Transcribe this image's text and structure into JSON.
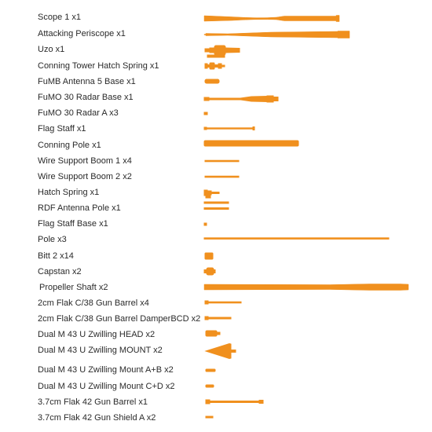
{
  "accent": "#f0901e",
  "parts": [
    {
      "label": "Scope 1 x1"
    },
    {
      "label": "Attacking Periscope x1"
    },
    {
      "label": "Uzo x1"
    },
    {
      "label": "Conning Tower Hatch Spring x1"
    },
    {
      "label": "FuMB Antenna 5 Base x1"
    },
    {
      "label": "FuMO 30 Radar Base x1"
    },
    {
      "label": "FuMO 30 Radar A x3"
    },
    {
      "label": "Flag Staff x1"
    },
    {
      "label": "Conning Pole x1"
    },
    {
      "label": "Wire Support Boom 1 x4"
    },
    {
      "label": "Wire Support Boom 2 x2"
    },
    {
      "label": "Hatch Spring x1"
    },
    {
      "label": "RDF Antenna Pole x1"
    },
    {
      "label": "Flag Staff Base x1"
    },
    {
      "label": "Pole x3"
    },
    {
      "label": "Bitt 2 x14"
    },
    {
      "label": "Capstan x2"
    },
    {
      "label": "Propeller Shaft x2"
    },
    {
      "label": "2cm Flak C/38 Gun Barrel x4"
    },
    {
      "label": "2cm Flak C/38 Gun Barrel DamperBCD x2"
    },
    {
      "label": "Dual M 43 U Zwilling HEAD x2"
    },
    {
      "label": "Dual M 43 U Zwilling MOUNT x2"
    },
    {
      "label": "Dual M 43 U Zwilling Mount A+B x2"
    },
    {
      "label": "Dual M 43 U Zwilling Mount C+D x2"
    },
    {
      "label": "3.7cm Flak 42 Gun Barrel x1"
    },
    {
      "label": "3.7cm Flak 42 Gun Shield A x2"
    }
  ]
}
